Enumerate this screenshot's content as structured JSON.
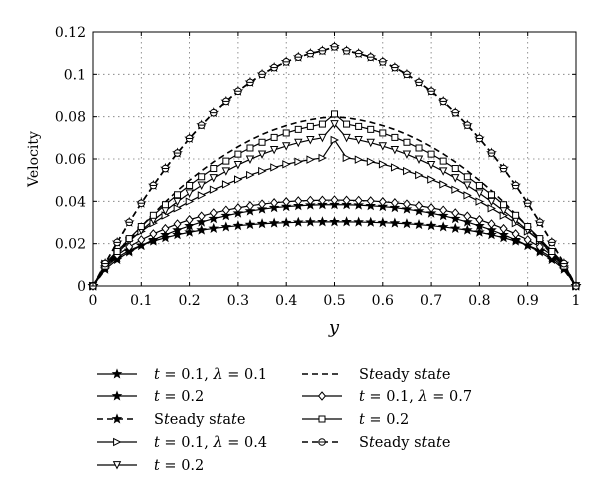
{
  "chart_data": {
    "type": "line",
    "xlabel": "y",
    "ylabel": "Velocity",
    "xlim": [
      0,
      1
    ],
    "ylim": [
      0,
      0.12
    ],
    "xticks": [
      "0",
      "0.1",
      "0.2",
      "0.3",
      "0.4",
      "0.5",
      "0.6",
      "0.7",
      "0.8",
      "0.9",
      "1"
    ],
    "yticks": [
      "0",
      "0.02",
      "0.04",
      "0.06",
      "0.08",
      "0.1",
      "0.12"
    ],
    "grid": true,
    "legend_position": "bottom",
    "x": [
      0,
      0.025,
      0.05,
      0.075,
      0.1,
      0.125,
      0.15,
      0.175,
      0.2,
      0.225,
      0.25,
      0.275,
      0.3,
      0.325,
      0.35,
      0.375,
      0.4,
      0.425,
      0.45,
      0.475,
      0.5,
      0.525,
      0.55,
      0.575,
      0.6,
      0.625,
      0.65,
      0.675,
      0.7,
      0.725,
      0.75,
      0.775,
      0.8,
      0.825,
      0.85,
      0.875,
      0.9,
      0.925,
      0.95,
      0.975,
      1
    ],
    "series": [
      {
        "name": "t = 0.1, λ = 0.1",
        "marker": "star",
        "line": "solid",
        "values": [
          0,
          0.0088,
          0.0135,
          0.0168,
          0.0192,
          0.0212,
          0.0228,
          0.0242,
          0.0254,
          0.0264,
          0.0272,
          0.0279,
          0.0285,
          0.029,
          0.0294,
          0.0297,
          0.0299,
          0.0301,
          0.0302,
          0.0303,
          0.0303,
          0.0303,
          0.0302,
          0.0301,
          0.0299,
          0.0297,
          0.0294,
          0.029,
          0.0285,
          0.0279,
          0.0272,
          0.0264,
          0.0254,
          0.0242,
          0.0228,
          0.0212,
          0.0192,
          0.0168,
          0.0135,
          0.0088,
          0
        ]
      },
      {
        "name": "t = 0.2",
        "marker": "star",
        "line": "solid",
        "values": [
          0,
          0.0079,
          0.0125,
          0.0161,
          0.0191,
          0.0218,
          0.0242,
          0.0264,
          0.0284,
          0.0302,
          0.0318,
          0.0332,
          0.0344,
          0.0354,
          0.0363,
          0.037,
          0.0375,
          0.0379,
          0.0382,
          0.0384,
          0.0384,
          0.0384,
          0.0382,
          0.0379,
          0.0375,
          0.037,
          0.0363,
          0.0354,
          0.0344,
          0.0332,
          0.0318,
          0.0302,
          0.0284,
          0.0264,
          0.0242,
          0.0218,
          0.0191,
          0.0161,
          0.0125,
          0.0079,
          0
        ]
      },
      {
        "name": "Steady state",
        "marker": "star",
        "line": "dashed",
        "values": [
          0,
          0.0106,
          0.0206,
          0.0301,
          0.0391,
          0.0475,
          0.0555,
          0.0628,
          0.0697,
          0.076,
          0.0819,
          0.0872,
          0.092,
          0.0962,
          0.1,
          0.1032,
          0.1059,
          0.1081,
          0.1098,
          0.1111,
          0.113,
          0.1111,
          0.1098,
          0.1081,
          0.1059,
          0.1032,
          0.1,
          0.0962,
          0.092,
          0.0872,
          0.0819,
          0.076,
          0.0697,
          0.0628,
          0.0555,
          0.0475,
          0.0391,
          0.0301,
          0.0206,
          0.0106,
          0
        ]
      },
      {
        "name": "t = 0.1, λ = 0.4",
        "marker": "triangle-right",
        "line": "solid",
        "values": [
          0,
          0.0105,
          0.0166,
          0.0215,
          0.0258,
          0.0297,
          0.0333,
          0.0367,
          0.0399,
          0.0428,
          0.0455,
          0.048,
          0.0503,
          0.0524,
          0.0543,
          0.056,
          0.0575,
          0.0587,
          0.0597,
          0.0605,
          0.069,
          0.0605,
          0.0597,
          0.0587,
          0.0575,
          0.056,
          0.0543,
          0.0524,
          0.0503,
          0.048,
          0.0455,
          0.0428,
          0.0399,
          0.0367,
          0.0333,
          0.0297,
          0.0258,
          0.0215,
          0.0166,
          0.0105,
          0
        ]
      },
      {
        "name": "t = 0.2",
        "marker": "triangle-down",
        "line": "solid",
        "values": [
          0,
          0.0091,
          0.0155,
          0.0211,
          0.0262,
          0.031,
          0.0355,
          0.0398,
          0.0438,
          0.0475,
          0.051,
          0.0542,
          0.0572,
          0.0598,
          0.0622,
          0.0643,
          0.0661,
          0.0677,
          0.069,
          0.07,
          0.0765,
          0.07,
          0.069,
          0.0677,
          0.0661,
          0.0643,
          0.0622,
          0.0598,
          0.0572,
          0.0542,
          0.051,
          0.0475,
          0.0438,
          0.0398,
          0.0355,
          0.031,
          0.0262,
          0.0211,
          0.0155,
          0.0091,
          0
        ]
      },
      {
        "name": "Steady state",
        "marker": "none",
        "line": "dashed",
        "values": [
          0,
          0.0076,
          0.0148,
          0.0216,
          0.028,
          0.034,
          0.0397,
          0.045,
          0.0499,
          0.0544,
          0.0586,
          0.0624,
          0.0658,
          0.0689,
          0.0716,
          0.0739,
          0.0758,
          0.0774,
          0.0786,
          0.0795,
          0.08,
          0.0795,
          0.0786,
          0.0774,
          0.0758,
          0.0739,
          0.0716,
          0.0689,
          0.0658,
          0.0624,
          0.0586,
          0.0544,
          0.0499,
          0.045,
          0.0397,
          0.034,
          0.028,
          0.0216,
          0.0148,
          0.0076,
          0
        ]
      },
      {
        "name": "t = 0.1, λ = 0.7",
        "marker": "diamond",
        "line": "solid",
        "values": [
          0,
          0.0095,
          0.0146,
          0.0185,
          0.0218,
          0.0246,
          0.0271,
          0.0293,
          0.0313,
          0.033,
          0.0345,
          0.0358,
          0.0369,
          0.0379,
          0.0387,
          0.0393,
          0.0398,
          0.0402,
          0.0404,
          0.0405,
          0.0406,
          0.0405,
          0.0404,
          0.0402,
          0.0398,
          0.0393,
          0.0387,
          0.0379,
          0.0369,
          0.0358,
          0.0345,
          0.033,
          0.0313,
          0.0293,
          0.0271,
          0.0246,
          0.0218,
          0.0185,
          0.0146,
          0.0095,
          0
        ]
      },
      {
        "name": "t = 0.2",
        "marker": "square",
        "line": "solid",
        "values": [
          0,
          0.0094,
          0.0163,
          0.0224,
          0.0281,
          0.0334,
          0.0384,
          0.0431,
          0.0475,
          0.0516,
          0.0555,
          0.059,
          0.0623,
          0.0652,
          0.0679,
          0.0702,
          0.0723,
          0.074,
          0.0754,
          0.0765,
          0.0813,
          0.0765,
          0.0754,
          0.074,
          0.0723,
          0.0702,
          0.0679,
          0.0652,
          0.0623,
          0.059,
          0.0555,
          0.0516,
          0.0475,
          0.0431,
          0.0384,
          0.0334,
          0.0281,
          0.0224,
          0.0163,
          0.0094,
          0
        ]
      },
      {
        "name": "Steady state",
        "marker": "circle-dot",
        "line": "dashed",
        "values": [
          0,
          0.0106,
          0.0206,
          0.0301,
          0.0391,
          0.0475,
          0.0555,
          0.0628,
          0.0697,
          0.076,
          0.0819,
          0.0872,
          0.092,
          0.0962,
          0.1,
          0.1032,
          0.1059,
          0.1081,
          0.1098,
          0.1111,
          0.113,
          0.1111,
          0.1098,
          0.1081,
          0.1059,
          0.1032,
          0.1,
          0.0962,
          0.092,
          0.0872,
          0.0819,
          0.076,
          0.0697,
          0.0628,
          0.0555,
          0.0475,
          0.0391,
          0.0301,
          0.0206,
          0.0106,
          0
        ]
      }
    ],
    "legend": {
      "left": [
        {
          "series": 0,
          "label": "t = 0.1, λ = 0.1"
        },
        {
          "series": 1,
          "label": "t = 0.2"
        },
        {
          "series": 2,
          "label": "Steady state"
        },
        {
          "series": 3,
          "label": "t = 0.1, λ = 0.4"
        },
        {
          "series": 4,
          "label": "t = 0.2"
        }
      ],
      "right": [
        {
          "series": 5,
          "label": "Steady state"
        },
        {
          "series": 6,
          "label": "t = 0.1, λ = 0.7"
        },
        {
          "series": 7,
          "label": "t = 0.2"
        },
        {
          "series": 8,
          "label": "Steady state"
        }
      ]
    }
  }
}
